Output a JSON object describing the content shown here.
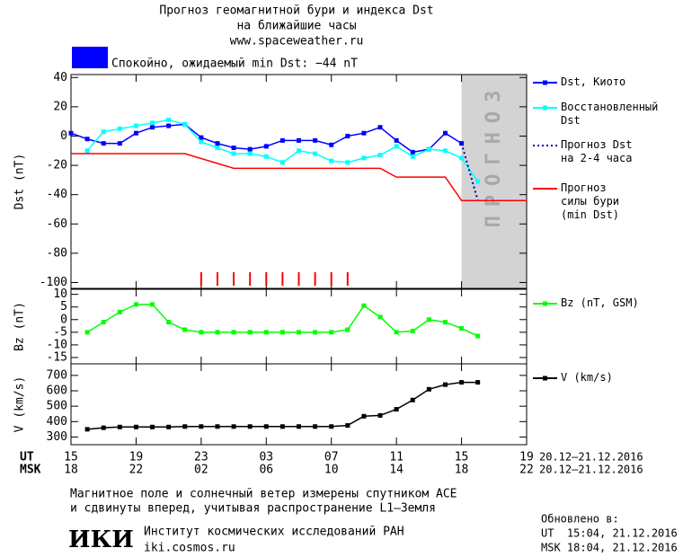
{
  "header": {
    "title": "Прогноз геомагнитной бури и индекса Dst",
    "subtitle": "на ближайшие часы",
    "url": "www.spaceweather.ru",
    "status": "Спокойно, ожидаемый min Dst: −44 nT",
    "status_color": "#0000ff"
  },
  "chart_data": [
    {
      "type": "line",
      "ylabel": "Dst (nT)",
      "ylim": [
        -104,
        42
      ],
      "yticks": [
        40,
        20,
        0,
        -20,
        -40,
        -60,
        -80,
        -100
      ],
      "forecast_region": [
        24,
        28
      ],
      "forecast_label": "ПРОГНОЗ",
      "forecast_color": "#d3d3d3",
      "event_marks": [
        8,
        9,
        10,
        11,
        12,
        13,
        14,
        15,
        16,
        17
      ],
      "event_color": "#ff0000",
      "series": [
        {
          "name": "Dst, Киото",
          "color": "#0000ff",
          "marker": "square",
          "dash": false,
          "x": [
            0,
            1,
            2,
            3,
            4,
            5,
            6,
            7,
            8,
            9,
            10,
            11,
            12,
            13,
            14,
            15,
            16,
            17,
            18,
            19,
            20,
            21,
            22,
            23,
            24
          ],
          "values": [
            2,
            -2,
            -5,
            -5,
            2,
            6,
            7,
            8,
            -1,
            -5,
            -8,
            -9,
            -7,
            -3,
            -3,
            -3,
            -6,
            0,
            2,
            6,
            -3,
            -11,
            -9,
            2,
            -5
          ]
        },
        {
          "name": "Восстановленный\nDst",
          "color": "#00ffff",
          "marker": "square",
          "dash": false,
          "x": [
            1,
            2,
            3,
            4,
            5,
            6,
            7,
            8,
            9,
            10,
            11,
            12,
            13,
            14,
            15,
            16,
            17,
            18,
            19,
            20,
            21,
            22,
            23,
            24,
            25
          ],
          "values": [
            -10,
            3,
            5,
            7,
            9,
            11,
            8,
            -4,
            -8,
            -12,
            -12,
            -14,
            -18,
            -10,
            -12,
            -17,
            -18,
            -15,
            -13,
            -7,
            -14,
            -9,
            -10,
            -15,
            -31
          ]
        },
        {
          "name": "Прогноз Dst\nна 2-4 часа",
          "color": "#0000aa",
          "marker": "none",
          "dash": true,
          "x": [
            24,
            25
          ],
          "values": [
            -5,
            -44
          ]
        },
        {
          "name": "Прогноз\nсилы бури\n(min Dst)",
          "color": "#ff0000",
          "marker": "none",
          "dash": false,
          "x": [
            0,
            7,
            10,
            19,
            20,
            23,
            24,
            28
          ],
          "values": [
            -12,
            -12,
            -22,
            -22,
            -28,
            -28,
            -44,
            -44
          ]
        }
      ]
    },
    {
      "type": "line",
      "ylabel": "Bz (nT)",
      "ylim": [
        -17.5,
        12
      ],
      "yticks": [
        10,
        5,
        0,
        -5,
        -10,
        -15
      ],
      "series": [
        {
          "name": "Bz (nT, GSM)",
          "color": "#00ff00",
          "marker": "square",
          "dash": false,
          "x": [
            1,
            2,
            3,
            4,
            5,
            6,
            7,
            8,
            9,
            10,
            11,
            12,
            13,
            14,
            15,
            16,
            17,
            18,
            19,
            20,
            21,
            22,
            23,
            24,
            25
          ],
          "values": [
            -5,
            -1,
            3,
            6,
            6,
            -1,
            -4,
            -5,
            -5,
            -5,
            -5,
            -5,
            -5,
            -5,
            -5,
            -5,
            -4,
            5.5,
            1,
            -5,
            -4.5,
            0,
            -1,
            -3.5,
            -6.5
          ]
        }
      ]
    },
    {
      "type": "line",
      "ylabel": "V (km/s)",
      "ylim": [
        250,
        775
      ],
      "yticks": [
        300,
        400,
        500,
        600,
        700
      ],
      "xlim": [
        0,
        28
      ],
      "x_row_label": "UT",
      "x_row2_label": "MSK",
      "x_range_text": "20.12–21.12.2016",
      "xticks": [
        {
          "value": 0,
          "label": "15"
        },
        {
          "value": 4,
          "label": "19"
        },
        {
          "value": 8,
          "label": "23"
        },
        {
          "value": 12,
          "label": "03"
        },
        {
          "value": 16,
          "label": "07"
        },
        {
          "value": 20,
          "label": "11"
        },
        {
          "value": 24,
          "label": "15"
        },
        {
          "value": 28,
          "label": "19"
        }
      ],
      "xticks_msk": [
        {
          "value": 0,
          "label": "18"
        },
        {
          "value": 4,
          "label": "22"
        },
        {
          "value": 8,
          "label": "02"
        },
        {
          "value": 12,
          "label": "06"
        },
        {
          "value": 16,
          "label": "10"
        },
        {
          "value": 20,
          "label": "14"
        },
        {
          "value": 24,
          "label": "18"
        },
        {
          "value": 28,
          "label": "22"
        }
      ],
      "series": [
        {
          "name": "V (km/s)",
          "color": "#000000",
          "marker": "square",
          "dash": false,
          "x": [
            1,
            2,
            3,
            4,
            5,
            6,
            7,
            8,
            9,
            10,
            11,
            12,
            13,
            14,
            15,
            16,
            17,
            18,
            19,
            20,
            21,
            22,
            23,
            24,
            25
          ],
          "values": [
            350,
            360,
            365,
            365,
            365,
            365,
            368,
            368,
            368,
            368,
            368,
            368,
            368,
            368,
            368,
            368,
            375,
            435,
            440,
            480,
            540,
            610,
            640,
            655,
            655
          ]
        }
      ]
    }
  ],
  "footer": {
    "note_line1": "Магнитное поле и солнечный ветер измерены спутником ACE",
    "note_line2": "и сдвинуты вперед, учитывая распространение L1–Земля",
    "logo": "ИКИ",
    "institute": "Институт космических исследований РАН",
    "institute_url": "iki.cosmos.ru",
    "updated_label": "Обновлено в:",
    "updated_ut": "UT  15:04, 21.12.2016",
    "updated_msk": "MSK 18:04, 21.12.2016"
  }
}
